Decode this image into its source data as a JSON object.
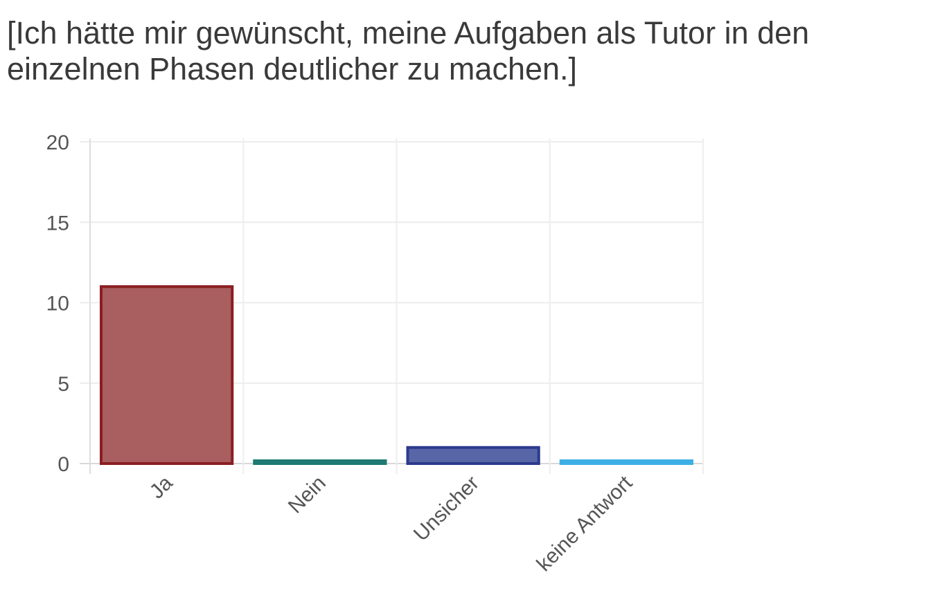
{
  "chart_data": {
    "type": "bar",
    "title": "[Ich hätte mir gewünscht, meine Aufgaben als Tutor in den einzelnen Phasen deutlicher zu machen.]",
    "categories": [
      "Ja",
      "Nein",
      "Unsicher",
      "keine Antwort"
    ],
    "values": [
      11,
      0,
      1,
      0
    ],
    "ylim": [
      0,
      20
    ],
    "yticks": [
      0,
      5,
      10,
      15,
      20
    ],
    "grid": true,
    "legend": "none",
    "colors": [
      {
        "fill": "#a95e60",
        "stroke": "#8a1e22"
      },
      {
        "fill": "#3e8f88",
        "stroke": "#1e7a72"
      },
      {
        "fill": "#5865a6",
        "stroke": "#2c3a8c"
      },
      {
        "fill": "#62bde9",
        "stroke": "#3cb0e4"
      }
    ]
  }
}
